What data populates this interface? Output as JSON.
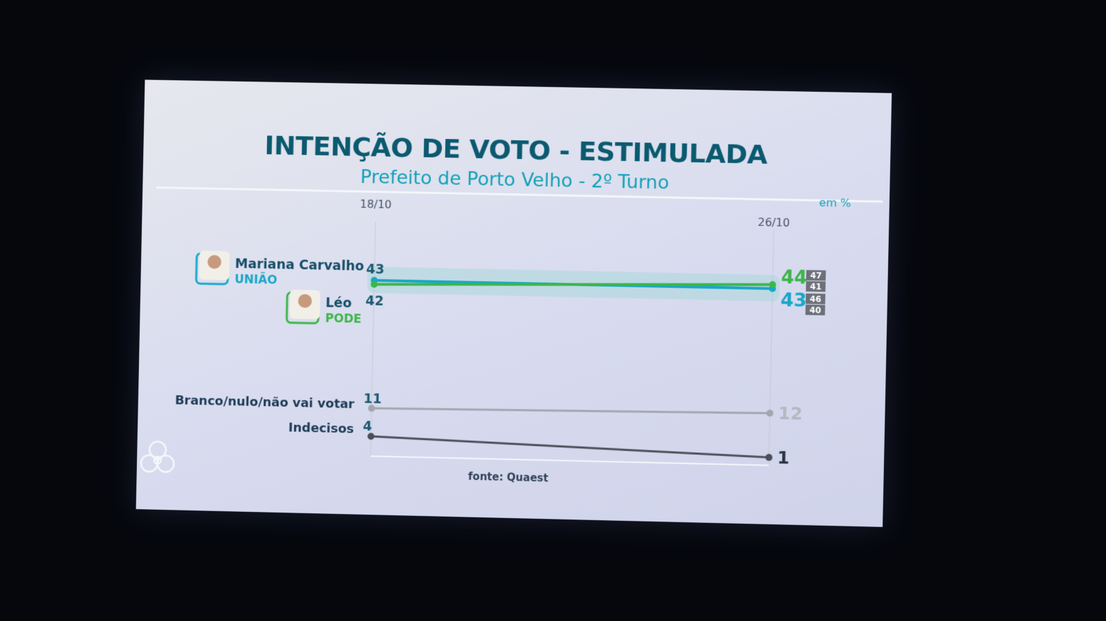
{
  "title": "INTENÇÃO DE VOTO - ESTIMULADA",
  "subtitle": "Prefeito de Porto Velho - 2º Turno",
  "unit": "em %",
  "source": "fonte: Quaest",
  "chart_data": {
    "type": "line",
    "x": [
      "18/10",
      "26/10"
    ],
    "series": [
      {
        "name": "Mariana Carvalho",
        "party": "UNIÃO",
        "values": [
          43,
          43
        ],
        "color": "#19a7c9",
        "margin": [
          "46",
          "40"
        ]
      },
      {
        "name": "Léo",
        "party": "PODE",
        "values": [
          42,
          44
        ],
        "color": "#3cb54a",
        "margin": [
          "47",
          "41"
        ]
      },
      {
        "name": "Branco/nulo/não vai votar",
        "values": [
          11,
          12
        ],
        "color": "#a3a6ae"
      },
      {
        "name": "Indecisos",
        "values": [
          4,
          1
        ],
        "color": "#4b4f58"
      }
    ]
  }
}
